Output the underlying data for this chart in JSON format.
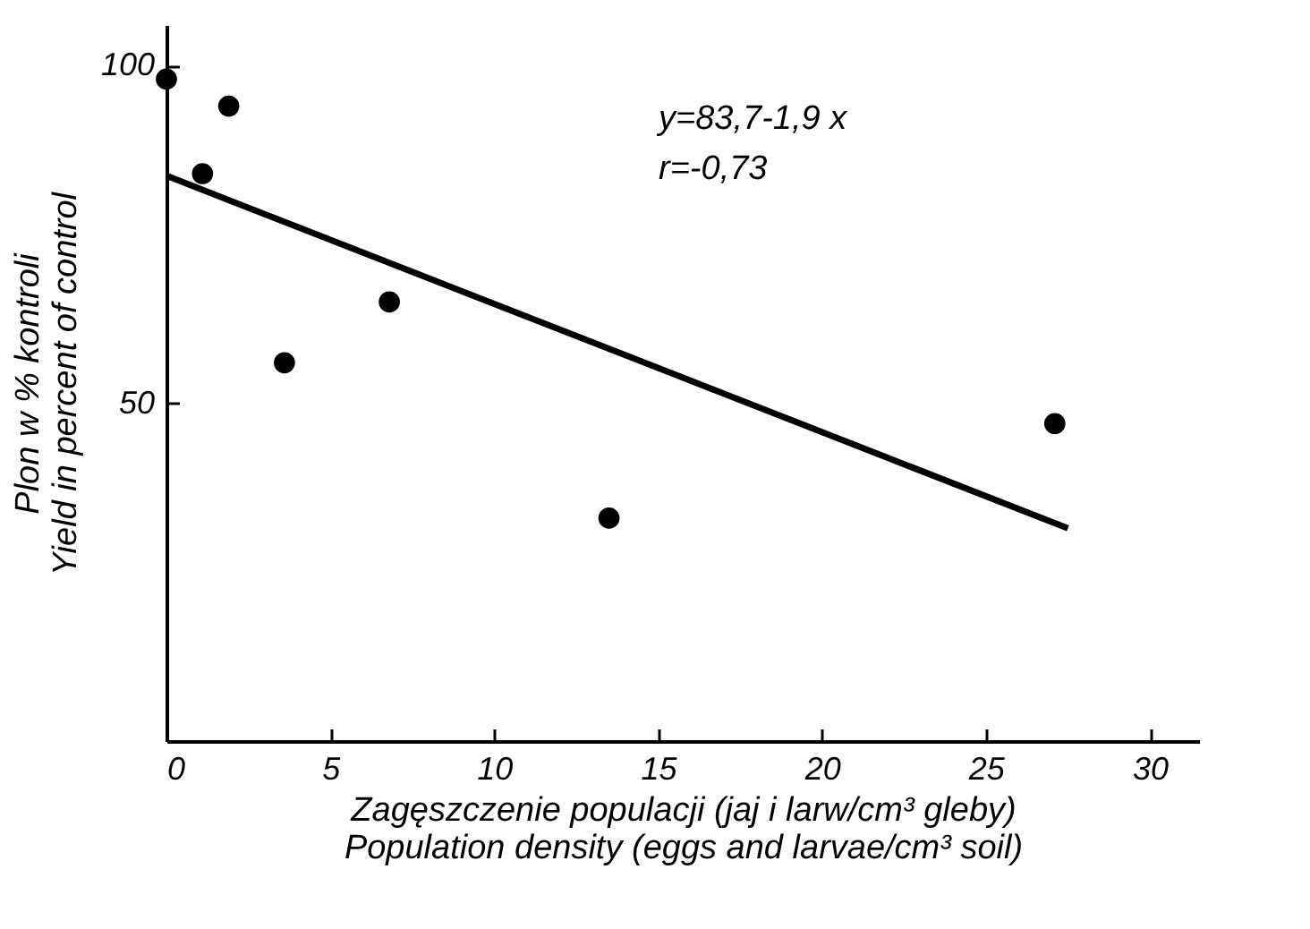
{
  "chart_data": {
    "type": "scatter",
    "xlabel": "Zagęszczenie populacji (jaj i larw/cm³ gleby)\nPopulation density (eggs and larvae/cm³ soil)",
    "ylabel": "Plon w % kontroli\nYield in percent of control",
    "annotations": [
      "y=83,7-1,9 x",
      "r=-0,73"
    ],
    "series": [
      {
        "color": "#000000",
        "marker": "circle",
        "x": [
          0,
          1.1,
          1.9,
          3.6,
          6.8,
          13.5,
          27.1
        ],
        "values": [
          98,
          84,
          94,
          56,
          65,
          33,
          47
        ]
      },
      {
        "type": "line",
        "color": "#000000",
        "x": [
          0,
          27.5
        ],
        "values": [
          83.7,
          31.5
        ]
      }
    ],
    "xlim": [
      0,
      31.5
    ],
    "ylim": [
      0,
      106
    ],
    "xticks": [
      0,
      5,
      10,
      15,
      20,
      25,
      30
    ],
    "yticks": [
      50,
      100
    ],
    "grid": false,
    "line_style": "solid"
  }
}
